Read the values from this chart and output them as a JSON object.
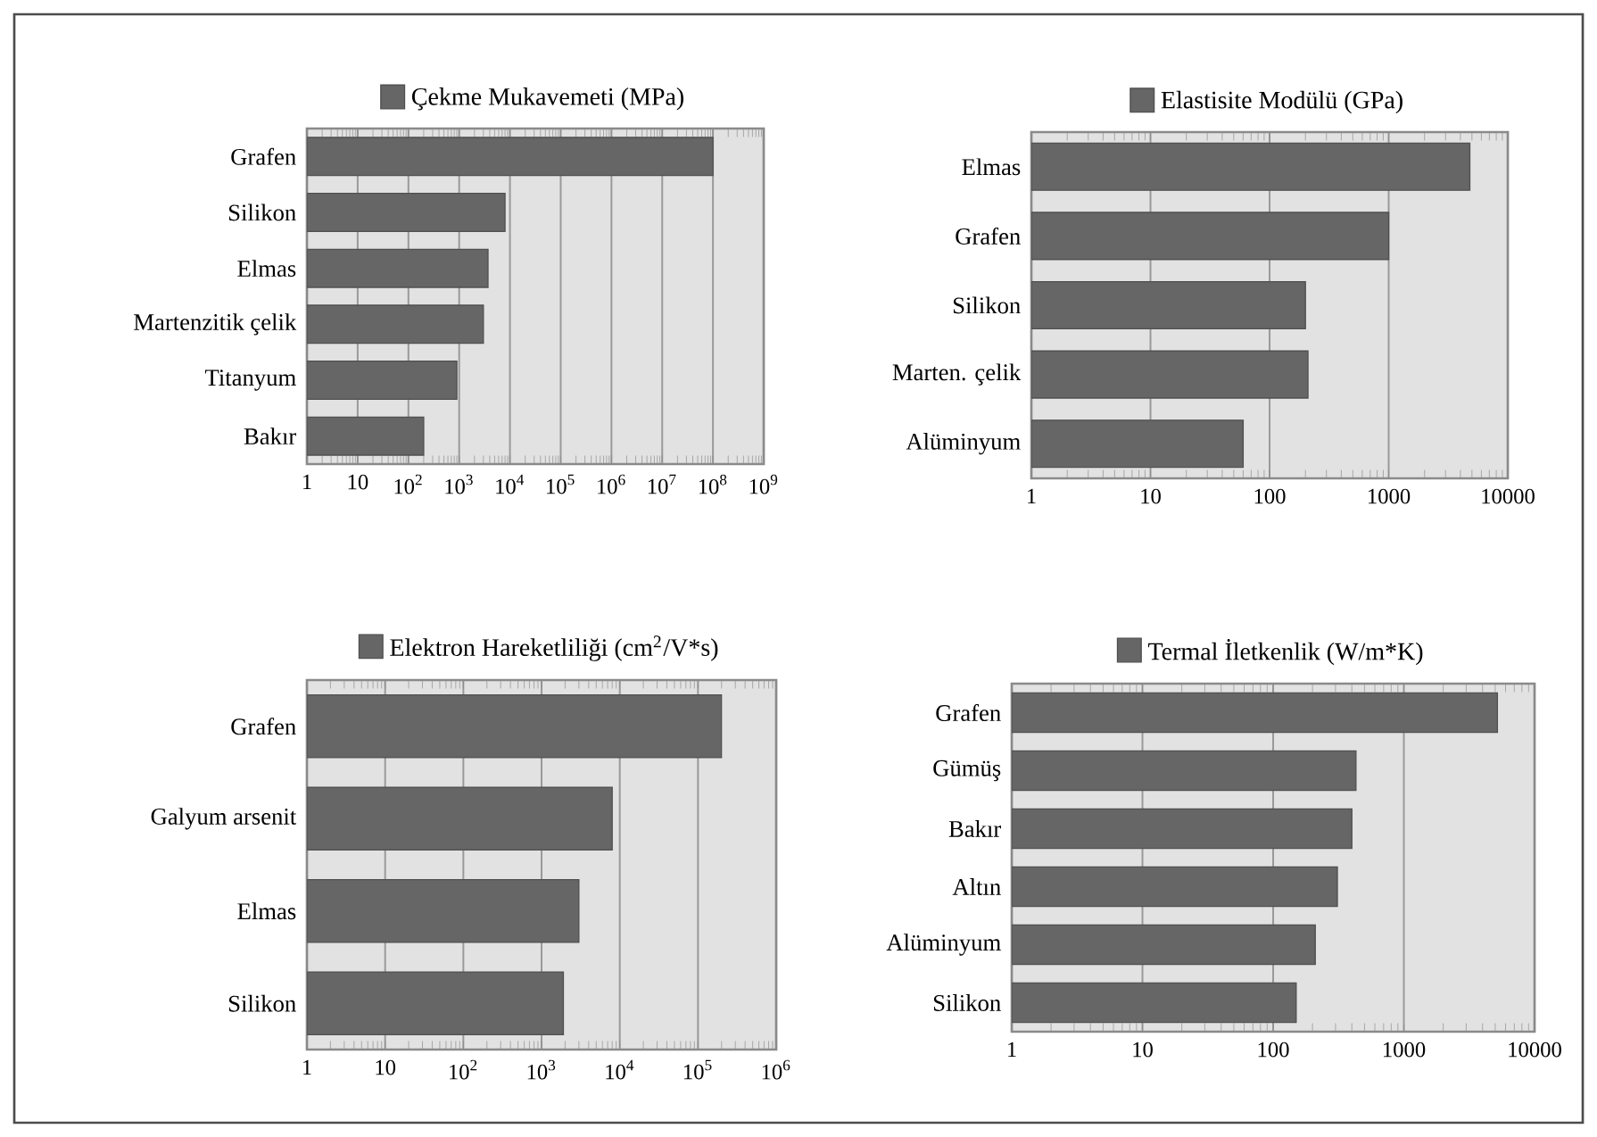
{
  "chart_data": [
    {
      "type": "bar",
      "orientation": "horizontal",
      "log": "x",
      "grid": "x",
      "legend": "top",
      "categories": [
        "Grafen",
        "Silikon",
        "Elmas",
        "Martenzitik çelik",
        "Titanyum",
        "Bakır"
      ],
      "series": [
        {
          "name": "Çekme Mukavemeti (MPa)",
          "color": "#666666",
          "values": [
            100000000,
            8000,
            3700,
            3000,
            900,
            200
          ]
        }
      ],
      "xlim": [
        1,
        1000000000
      ],
      "xticks": [
        1,
        10,
        {
          "value": 100,
          "label": "10$^{2}$"
        },
        {
          "value": 1000,
          "label": "10$^{3}$"
        },
        {
          "value": 10000,
          "label": "10$^{4}$"
        },
        {
          "value": 100000,
          "label": "10$^{5}$"
        },
        {
          "value": 1000000,
          "label": "10$^{6}$"
        },
        {
          "value": 10000000,
          "label": "10$^{7}$"
        },
        {
          "value": 100000000,
          "label": "10$^{8}$"
        },
        {
          "value": 1000000000,
          "label": "10$^{9}$"
        }
      ]
    },
    {
      "type": "bar",
      "orientation": "horizontal",
      "log": "x",
      "grid": "x",
      "legend": "top",
      "categories": [
        "Elmas",
        "Grafen",
        "Silikon",
        "Marten. çelik",
        "Alüminyum"
      ],
      "series": [
        {
          "name": "Elastisite Modülü (GPa)",
          "color": "#666666",
          "values": [
            4800,
            1000,
            200,
            210,
            60
          ]
        }
      ],
      "xlim": [
        1,
        10000
      ],
      "xticks": [
        1,
        10,
        100,
        1000,
        10000
      ]
    },
    {
      "type": "bar",
      "orientation": "horizontal",
      "log": "x",
      "grid": "x",
      "legend": "top",
      "categories": [
        "Grafen",
        "Galyum arsenit",
        "Elmas",
        "Silikon"
      ],
      "series": [
        {
          "name": "Elektron Hareketliliği (cm$^{2}$/V*s)",
          "color": "#666666",
          "values": [
            200000,
            8000,
            3000,
            1900
          ]
        }
      ],
      "xlim": [
        1,
        1000000
      ],
      "xticks": [
        1,
        10,
        {
          "value": 100,
          "label": "10$^{2}$"
        },
        {
          "value": 1000,
          "label": "10$^{3}$"
        },
        {
          "value": 10000,
          "label": "10$^{4}$"
        },
        {
          "value": 100000,
          "label": "10$^{5}$"
        },
        {
          "value": 1000000,
          "label": "10$^{6}$"
        }
      ]
    },
    {
      "type": "bar",
      "orientation": "horizontal",
      "log": "x",
      "grid": "x",
      "legend": "top",
      "categories": [
        "Grafen",
        "Gümüş",
        "Bakır",
        "Altın",
        "Alüminyum",
        "Silikon"
      ],
      "series": [
        {
          "name": "Termal İletkenlik (W/m*K)",
          "color": "#666666",
          "values": [
            5200,
            430,
            400,
            310,
            210,
            150
          ]
        }
      ],
      "xlim": [
        1,
        10000
      ],
      "xticks": [
        1,
        10,
        100,
        1000,
        10000
      ]
    }
  ]
}
